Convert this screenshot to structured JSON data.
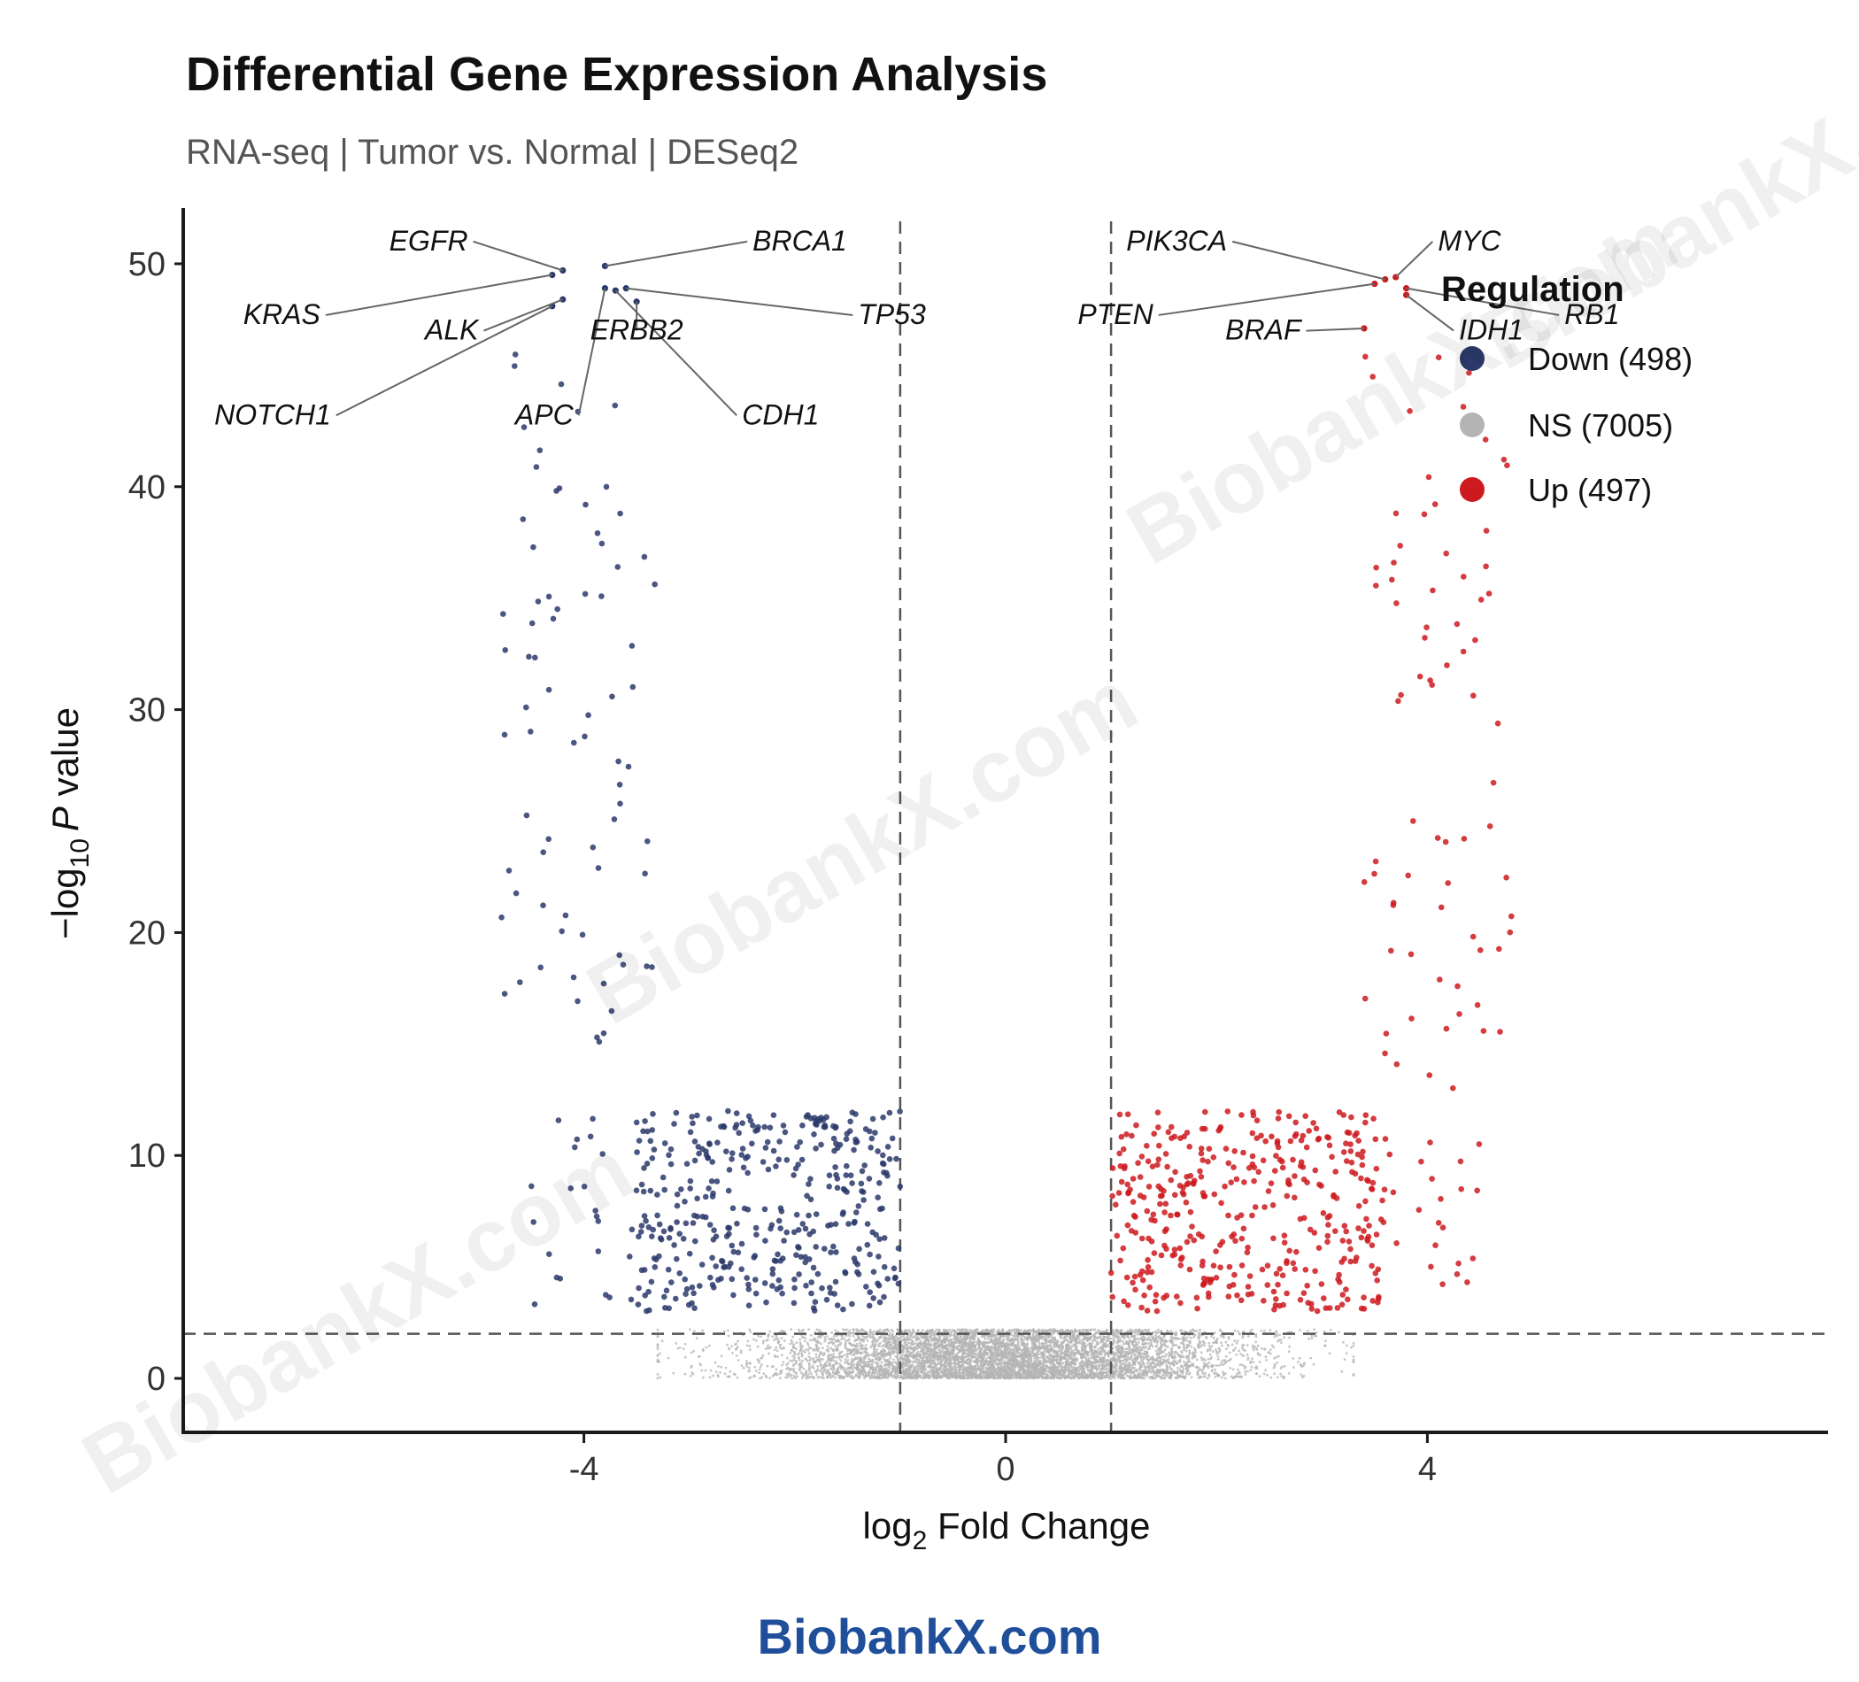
{
  "chart_data": {
    "type": "scatter",
    "title": "Differential Gene Expression Analysis",
    "subtitle": "RNA-seq | Tumor vs. Normal | DESeq2",
    "xlabel": {
      "pre": "log",
      "sub": "2",
      "post": " Fold Change"
    },
    "ylabel": {
      "pre": "−log",
      "sub": "10",
      "italic": "P",
      "post": " value"
    },
    "xlim": [
      -7.8,
      7.8
    ],
    "ylim": [
      -2.5,
      52.5
    ],
    "x_ticks": [
      -4,
      0,
      4
    ],
    "x_tick_labels": [
      "-4",
      "0",
      "4"
    ],
    "y_ticks": [
      0,
      10,
      20,
      30,
      40,
      50
    ],
    "y_tick_labels": [
      "0",
      "10",
      "20",
      "30",
      "40",
      "50"
    ],
    "thresholds": {
      "fold_change": [
        -1,
        1
      ],
      "pvalue": 2
    },
    "colors": {
      "down": "#2b3a6b",
      "ns": "#b4b4b4",
      "up": "#cc1a1f",
      "leader": "#666666"
    },
    "legend": {
      "title": "Regulation",
      "position": "top-right",
      "entries": [
        {
          "key": "down",
          "label": "Down (498)"
        },
        {
          "key": "ns",
          "label": "NS (7005)"
        },
        {
          "key": "up",
          "label": "Up (497)"
        }
      ]
    },
    "counts": {
      "down": 498,
      "ns": 7005,
      "up": 497
    },
    "labeled_genes": [
      {
        "gene": "EGFR",
        "x": -4.2,
        "y": 49.7,
        "label_x": -5.1,
        "label_y": 50.6
      },
      {
        "gene": "BRCA1",
        "x": -3.8,
        "y": 49.9,
        "label_x": -2.4,
        "label_y": 50.6
      },
      {
        "gene": "KRAS",
        "x": -4.3,
        "y": 49.5,
        "label_x": -6.5,
        "label_y": 47.3
      },
      {
        "gene": "ALK",
        "x": -4.2,
        "y": 48.4,
        "label_x": -5.0,
        "label_y": 46.6
      },
      {
        "gene": "TP53",
        "x": -3.6,
        "y": 48.9,
        "label_x": -1.4,
        "label_y": 47.3
      },
      {
        "gene": "ERBB2",
        "x": -3.5,
        "y": 48.3,
        "label_x": -3.5,
        "label_y": 46.6
      },
      {
        "gene": "NOTCH1",
        "x": -4.3,
        "y": 48.1,
        "label_x": -6.4,
        "label_y": 42.8
      },
      {
        "gene": "APC",
        "x": -3.8,
        "y": 48.9,
        "label_x": -4.1,
        "label_y": 42.8
      },
      {
        "gene": "CDH1",
        "x": -3.7,
        "y": 48.8,
        "label_x": -2.5,
        "label_y": 42.8
      },
      {
        "gene": "PIK3CA",
        "x": 3.6,
        "y": 49.3,
        "label_x": 2.1,
        "label_y": 50.6
      },
      {
        "gene": "MYC",
        "x": 3.7,
        "y": 49.4,
        "label_x": 4.1,
        "label_y": 50.6
      },
      {
        "gene": "PTEN",
        "x": 3.5,
        "y": 49.1,
        "label_x": 1.4,
        "label_y": 47.3
      },
      {
        "gene": "RB1",
        "x": 3.8,
        "y": 48.9,
        "label_x": 5.3,
        "label_y": 47.3
      },
      {
        "gene": "BRAF",
        "x": 3.4,
        "y": 47.1,
        "label_x": 2.8,
        "label_y": 46.6
      },
      {
        "gene": "IDH1",
        "x": 3.8,
        "y": 48.6,
        "label_x": 4.3,
        "label_y": 46.6
      }
    ],
    "generated_points": {
      "down_core": {
        "count": 400,
        "x_range": [
          -3.5,
          -1.0
        ],
        "y_range": [
          3.0,
          12.0
        ]
      },
      "down_outer": {
        "count": 24,
        "x_range": [
          -4.5,
          -3.5
        ],
        "y_range": [
          3.0,
          12.0
        ]
      },
      "down_high": {
        "count": 74,
        "x_range": [
          -4.8,
          -3.3
        ],
        "y_range": [
          14.5,
          46.0
        ]
      },
      "up_core": {
        "count": 400,
        "x_range": [
          1.0,
          3.6
        ],
        "y_range": [
          3.0,
          12.0
        ]
      },
      "up_outer": {
        "count": 22,
        "x_range": [
          3.6,
          4.5
        ],
        "y_range": [
          3.0,
          12.0
        ]
      },
      "up_high": {
        "count": 75,
        "x_range": [
          3.4,
          4.8
        ],
        "y_range": [
          13.0,
          47.0
        ]
      },
      "ns": {
        "count": 7005,
        "x_mean": 0.0,
        "x_sd": 1.1,
        "y_max": 2.2
      }
    }
  },
  "watermarks": [
    "BiobankX.com",
    "BiobankX.com",
    "BiobankX.com",
    "BiobankX.com"
  ],
  "footer": "BiobankX.com"
}
